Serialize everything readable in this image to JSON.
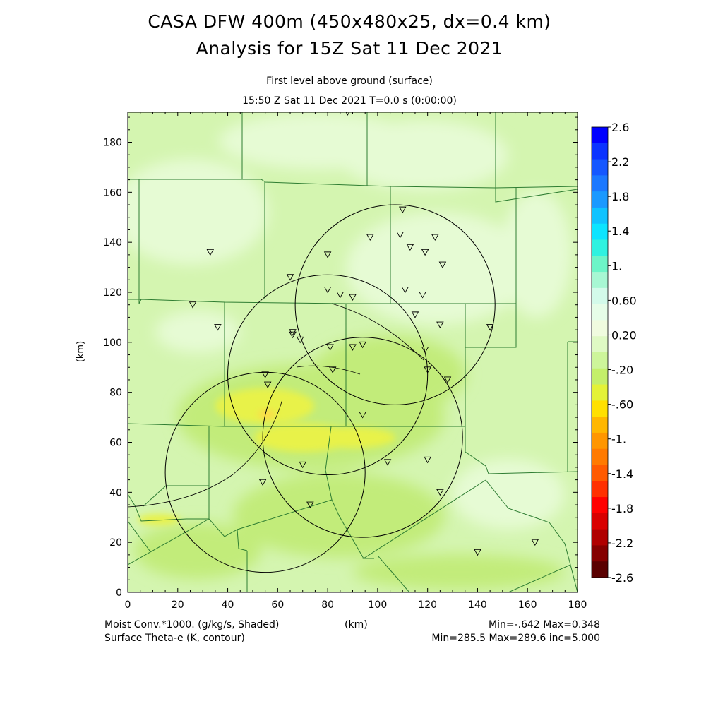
{
  "header": {
    "title_line1": "CASA DFW 400m (450x480x25, dx=0.4 km)",
    "title_line2": "Analysis for 15Z Sat 11 Dec 2021",
    "level_label": "First level above ground (surface)",
    "time_label": "15:50 Z Sat 11 Dec 2021    T=0.0 s (0:00:00)"
  },
  "footer": {
    "field1_label": "Moist Conv.*1000. (g/kg/s, Shaded)",
    "xaxis_units": "(km)",
    "field1_stats": "Min=-.642 Max=0.348",
    "field2_label": "Surface Theta-e (K, contour)",
    "field2_stats": "Min=285.5 Max=289.6 inc=5.000"
  },
  "colors": {
    "background_shade": "#d4f5b0",
    "positive_shade": "#e6fbd4",
    "negative_shade": "#c2ec7a",
    "strong_negative_shade": "#e8f24a",
    "county_lines": "#2e7d32",
    "contour_lines": "#000000"
  },
  "chart_data": {
    "type": "heatmap",
    "title": "CASA DFW 400m (450x480x25, dx=0.4 km)",
    "xlabel": "(km)",
    "ylabel": "(km)",
    "xlim": [
      0,
      180
    ],
    "ylim": [
      0,
      192
    ],
    "x_ticks": [
      0,
      20,
      40,
      60,
      80,
      100,
      120,
      140,
      160,
      180
    ],
    "y_ticks": [
      0,
      20,
      40,
      60,
      80,
      100,
      120,
      140,
      160,
      180
    ],
    "colorbar": {
      "labels": [
        "2.6",
        "2.2",
        "1.8",
        "1.4",
        "1.",
        "0.60",
        "0.20",
        "-.20",
        "-.60",
        "-1.",
        "-1.4",
        "-1.8",
        "-2.2",
        "-2.6"
      ],
      "colors": [
        "#0000ff",
        "#0b33ff",
        "#1557ff",
        "#1b78ff",
        "#1b99ff",
        "#10c3ff",
        "#0ce4ff",
        "#2ff2e0",
        "#6df5c8",
        "#a7f7d3",
        "#d3faea",
        "#e6fde8",
        "#f0fbdf",
        "#dff9c4",
        "#cdf59a",
        "#c4ef6a",
        "#e4f238",
        "#ffe000",
        "#ffb700",
        "#ff9600",
        "#ff7a00",
        "#ff5a00",
        "#ff3000",
        "#ff0000",
        "#d90000",
        "#b00000",
        "#850000",
        "#5a0000"
      ]
    },
    "radar_sites": [
      {
        "x": 55,
        "y": 48
      },
      {
        "x": 80,
        "y": 87
      },
      {
        "x": 107,
        "y": 115
      },
      {
        "x": 94,
        "y": 62
      }
    ],
    "radar_range_km": 40,
    "station_markers": [
      {
        "x": 88,
        "y": 192
      },
      {
        "x": 110,
        "y": 153
      },
      {
        "x": 97,
        "y": 142
      },
      {
        "x": 109,
        "y": 143
      },
      {
        "x": 113,
        "y": 138
      },
      {
        "x": 119,
        "y": 136
      },
      {
        "x": 123,
        "y": 142
      },
      {
        "x": 126,
        "y": 131
      },
      {
        "x": 80,
        "y": 135
      },
      {
        "x": 33,
        "y": 136
      },
      {
        "x": 65,
        "y": 126
      },
      {
        "x": 80,
        "y": 121
      },
      {
        "x": 85,
        "y": 119
      },
      {
        "x": 90,
        "y": 118
      },
      {
        "x": 111,
        "y": 121
      },
      {
        "x": 118,
        "y": 119
      },
      {
        "x": 26,
        "y": 115
      },
      {
        "x": 115,
        "y": 111
      },
      {
        "x": 125,
        "y": 107
      },
      {
        "x": 145,
        "y": 106
      },
      {
        "x": 36,
        "y": 106
      },
      {
        "x": 66,
        "y": 104
      },
      {
        "x": 66,
        "y": 103
      },
      {
        "x": 69,
        "y": 101
      },
      {
        "x": 81,
        "y": 98
      },
      {
        "x": 90,
        "y": 98
      },
      {
        "x": 94,
        "y": 99
      },
      {
        "x": 119,
        "y": 97
      },
      {
        "x": 82,
        "y": 89
      },
      {
        "x": 120,
        "y": 89
      },
      {
        "x": 128,
        "y": 85
      },
      {
        "x": 55,
        "y": 87
      },
      {
        "x": 56,
        "y": 83
      },
      {
        "x": 94,
        "y": 71
      },
      {
        "x": 120,
        "y": 53
      },
      {
        "x": 104,
        "y": 52
      },
      {
        "x": 70,
        "y": 51
      },
      {
        "x": 54,
        "y": 44
      },
      {
        "x": 125,
        "y": 40
      },
      {
        "x": 73,
        "y": 35
      },
      {
        "x": 140,
        "y": 16
      },
      {
        "x": 163,
        "y": 20
      }
    ]
  }
}
